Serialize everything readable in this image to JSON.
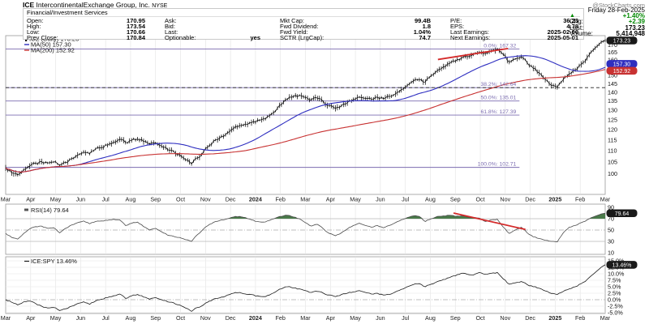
{
  "header": {
    "symbol": "ICE",
    "company": "IntercontinentalExchange Group, Inc.",
    "exchange": "NYSE",
    "brand": "@StockCharts.com",
    "sector": "Financial/Investment Services",
    "stats_columns": [
      [
        {
          "label": "Open:",
          "value": "170.95"
        },
        {
          "label": "High:",
          "value": "173.54"
        },
        {
          "label": "Low:",
          "value": "170.66"
        },
        {
          "label": "Prev Close:",
          "value": "170.84"
        }
      ],
      [
        {
          "label": "Ask:",
          "value": ""
        },
        {
          "label": "Bid:",
          "value": ""
        },
        {
          "label": "Last:",
          "value": ""
        },
        {
          "label": "Optionable:",
          "value": "yes"
        }
      ],
      [
        {
          "label": "Mkt Cap:",
          "value": "99.4B"
        },
        {
          "label": "Fwd Dividend:",
          "value": "1.8"
        },
        {
          "label": "Fwd Yield:",
          "value": "1.04%"
        },
        {
          "label": "SCTR (LrgCap):",
          "value": "74.7"
        }
      ],
      [
        {
          "label": "P/E:",
          "value": "36.23"
        },
        {
          "label": "EPS:",
          "value": "4.78"
        },
        {
          "label": "Last Earnings:",
          "value": "2025-02-06"
        },
        {
          "label": "Next Earnings:",
          "value": "2025-05-01"
        }
      ]
    ],
    "summary": {
      "date": "Friday 28-Feb-2025",
      "up_arrow": "▲",
      "pct_change": "+1.40%",
      "chg_label": "Chg:",
      "chg_value": "+2.39",
      "last_label": "Last:",
      "last_value": "173.23",
      "volume_label": "Volume:",
      "volume_value": "5,414,948"
    }
  },
  "colors": {
    "up_green": "#008800",
    "ma50_blue": "#2e2ec0",
    "ma200_red": "#c83232",
    "fib_purple": "#7b6cb0",
    "trendline_red": "#d42a2a",
    "rsi_fill_green": "#4a7a4a",
    "grid": "#e2e2e2",
    "panel_border": "#999999"
  },
  "chart_data": [
    {
      "type": "line",
      "title": "ICE (Daily)",
      "scale": "log",
      "ylim": [
        92,
        174
      ],
      "legend": [
        {
          "label": "ICE (Daily) 173.23",
          "color": "#000000"
        },
        {
          "label": "MA(50) 157.30",
          "color": "#2e2ec0"
        },
        {
          "label": "MA(200) 152.92",
          "color": "#c83232"
        }
      ],
      "x_labels": [
        "Mar",
        "Apr",
        "May",
        "Jun",
        "Jul",
        "Aug",
        "Sep",
        "Oct",
        "Nov",
        "Dec",
        "2024",
        "Feb",
        "Mar",
        "Apr",
        "May",
        "Jun",
        "Jul",
        "Aug",
        "Sep",
        "Oct",
        "Nov",
        "Dec",
        "2025",
        "Feb",
        "Mar"
      ],
      "y_ticks": [
        170,
        165,
        160,
        155,
        150,
        145,
        140,
        135,
        130,
        125,
        120,
        115,
        110,
        105,
        100
      ],
      "fib_levels": [
        {
          "label": "0.0%: 167.32",
          "value": 167.32
        },
        {
          "label": "38.2%: 142.64",
          "value": 142.64,
          "dashed_extension": true
        },
        {
          "label": "50.0%: 135.01",
          "value": 135.01
        },
        {
          "label": "61.8%: 127.39",
          "value": 127.39
        },
        {
          "label": "100.0%: 102.71",
          "value": 102.71
        }
      ],
      "trendline": {
        "t1": 0.721,
        "p1": 160.2,
        "t2": 0.838,
        "p2": 167.6
      },
      "badges": [
        {
          "text": "173.23",
          "value": 173.23,
          "bg": "#1a1a1a"
        },
        {
          "text": "157.30",
          "value": 157.3,
          "bg": "#2e2ec0"
        },
        {
          "text": "152.92",
          "value": 152.92,
          "bg": "#c83232"
        }
      ],
      "weekly_close": [
        102.5,
        100.5,
        99.6,
        101.8,
        103.2,
        104.5,
        105.2,
        104.6,
        105.0,
        103.6,
        104.8,
        106.5,
        108.0,
        109.5,
        108.6,
        110.8,
        111.5,
        112.5,
        114.0,
        115.3,
        113.8,
        114.8,
        115.5,
        114.2,
        113.1,
        113.6,
        112.2,
        110.5,
        109.8,
        108.2,
        106.0,
        104.2,
        106.8,
        109.5,
        112.5,
        115.0,
        116.8,
        118.5,
        120.5,
        122.0,
        122.8,
        123.5,
        124.8,
        125.5,
        127.0,
        129.5,
        133.0,
        136.0,
        137.5,
        138.2,
        137.0,
        135.8,
        136.6,
        134.5,
        132.5,
        131.0,
        132.4,
        134.0,
        135.8,
        137.2,
        136.5,
        136.0,
        137.2,
        136.4,
        137.6,
        139.0,
        141.5,
        144.0,
        146.5,
        147.5,
        146.0,
        150.0,
        153.0,
        155.5,
        157.5,
        159.0,
        161.0,
        162.0,
        163.5,
        165.0,
        164.2,
        166.0,
        167.3,
        163.5,
        158.5,
        160.5,
        162.0,
        158.0,
        154.5,
        151.5,
        147.5,
        144.0,
        142.9,
        147.5,
        151.0,
        153.5,
        157.0,
        161.5,
        166.5,
        170.5,
        173.23
      ]
    },
    {
      "type": "line",
      "title": "RSI(14)",
      "legend_label": "RSI(14) 79.64",
      "y_ticks": [
        90,
        70,
        50,
        30,
        10
      ],
      "bands": {
        "overbought": 70,
        "mid": 50,
        "oversold": 30
      },
      "fill_above_70_color": "#4a7a4a",
      "trendline": {
        "t1": 0.747,
        "v1": 80,
        "t2": 0.867,
        "v2": 51
      },
      "badge": {
        "text": "79.64",
        "value": 79.64,
        "bg": "#1a1a1a"
      },
      "values": [
        44,
        37,
        34,
        44,
        52,
        56,
        57,
        53,
        54,
        45,
        53,
        59,
        63,
        66,
        61,
        65,
        66,
        67,
        69,
        68,
        58,
        62,
        64,
        56,
        50,
        53,
        47,
        41,
        39,
        37,
        33,
        30,
        42,
        52,
        60,
        65,
        68,
        70,
        73,
        74,
        72,
        68,
        65,
        64,
        67,
        71,
        74,
        76,
        73,
        70,
        63,
        57,
        60,
        52,
        44,
        40,
        45,
        52,
        58,
        62,
        58,
        55,
        58,
        54,
        58,
        63,
        68,
        72,
        75,
        74,
        65,
        70,
        74,
        75,
        76,
        74,
        75,
        73,
        72,
        71,
        65,
        68,
        69,
        55,
        44,
        50,
        55,
        45,
        38,
        35,
        32,
        30,
        29,
        45,
        55,
        58,
        63,
        68,
        73,
        77,
        79.64
      ]
    },
    {
      "type": "line",
      "title": "ICE:SPY ratio",
      "legend_label": "ICE:SPY 13.46%",
      "y_ticks": [
        "15.0%",
        "12.5%",
        "10.0%",
        "7.5%",
        "5.0%",
        "2.5%",
        "0.0%",
        "-2.5%",
        "-5.0%"
      ],
      "y_tick_values": [
        15,
        12.5,
        10,
        7.5,
        5,
        2.5,
        0,
        -2.5,
        -5
      ],
      "badge": {
        "text": "13.46%",
        "value": 13.46,
        "bg": "#1a1a1a"
      },
      "x_labels": [
        "Mar",
        "Apr",
        "May",
        "Jun",
        "Jul",
        "Aug",
        "Sep",
        "Oct",
        "Nov",
        "Dec",
        "2024",
        "Feb",
        "Mar",
        "Apr",
        "May",
        "Jun",
        "Jul",
        "Aug",
        "Sep",
        "Oct",
        "Nov",
        "Dec",
        "2025",
        "Feb",
        "Mar"
      ],
      "values": [
        0.0,
        -1.0,
        -2.0,
        -0.8,
        -0.5,
        -1.5,
        -2.5,
        -3.2,
        -3.0,
        -4.2,
        -3.5,
        -2.5,
        -1.5,
        -0.8,
        -1.8,
        -0.5,
        0.2,
        0.8,
        1.5,
        2.2,
        0.5,
        1.5,
        2.0,
        1.0,
        0.2,
        0.8,
        0.0,
        -0.8,
        -1.2,
        -2.0,
        -3.2,
        -4.5,
        -3.0,
        -2.0,
        -0.5,
        0.5,
        1.0,
        1.8,
        2.5,
        2.8,
        2.2,
        2.0,
        1.5,
        1.2,
        1.8,
        3.0,
        4.2,
        5.0,
        4.5,
        4.2,
        3.5,
        2.8,
        3.2,
        2.5,
        1.8,
        1.2,
        2.0,
        2.5,
        3.0,
        3.5,
        2.8,
        2.2,
        2.5,
        1.8,
        2.0,
        3.0,
        4.0,
        5.0,
        5.8,
        6.2,
        5.0,
        6.0,
        7.0,
        7.8,
        8.5,
        9.2,
        10.2,
        9.8,
        9.5,
        10.5,
        9.8,
        10.2,
        10.5,
        8.0,
        6.0,
        6.5,
        7.0,
        5.8,
        5.0,
        4.4,
        3.4,
        2.4,
        2.0,
        3.2,
        4.2,
        5.0,
        6.2,
        7.8,
        9.8,
        11.8,
        13.46
      ]
    }
  ]
}
